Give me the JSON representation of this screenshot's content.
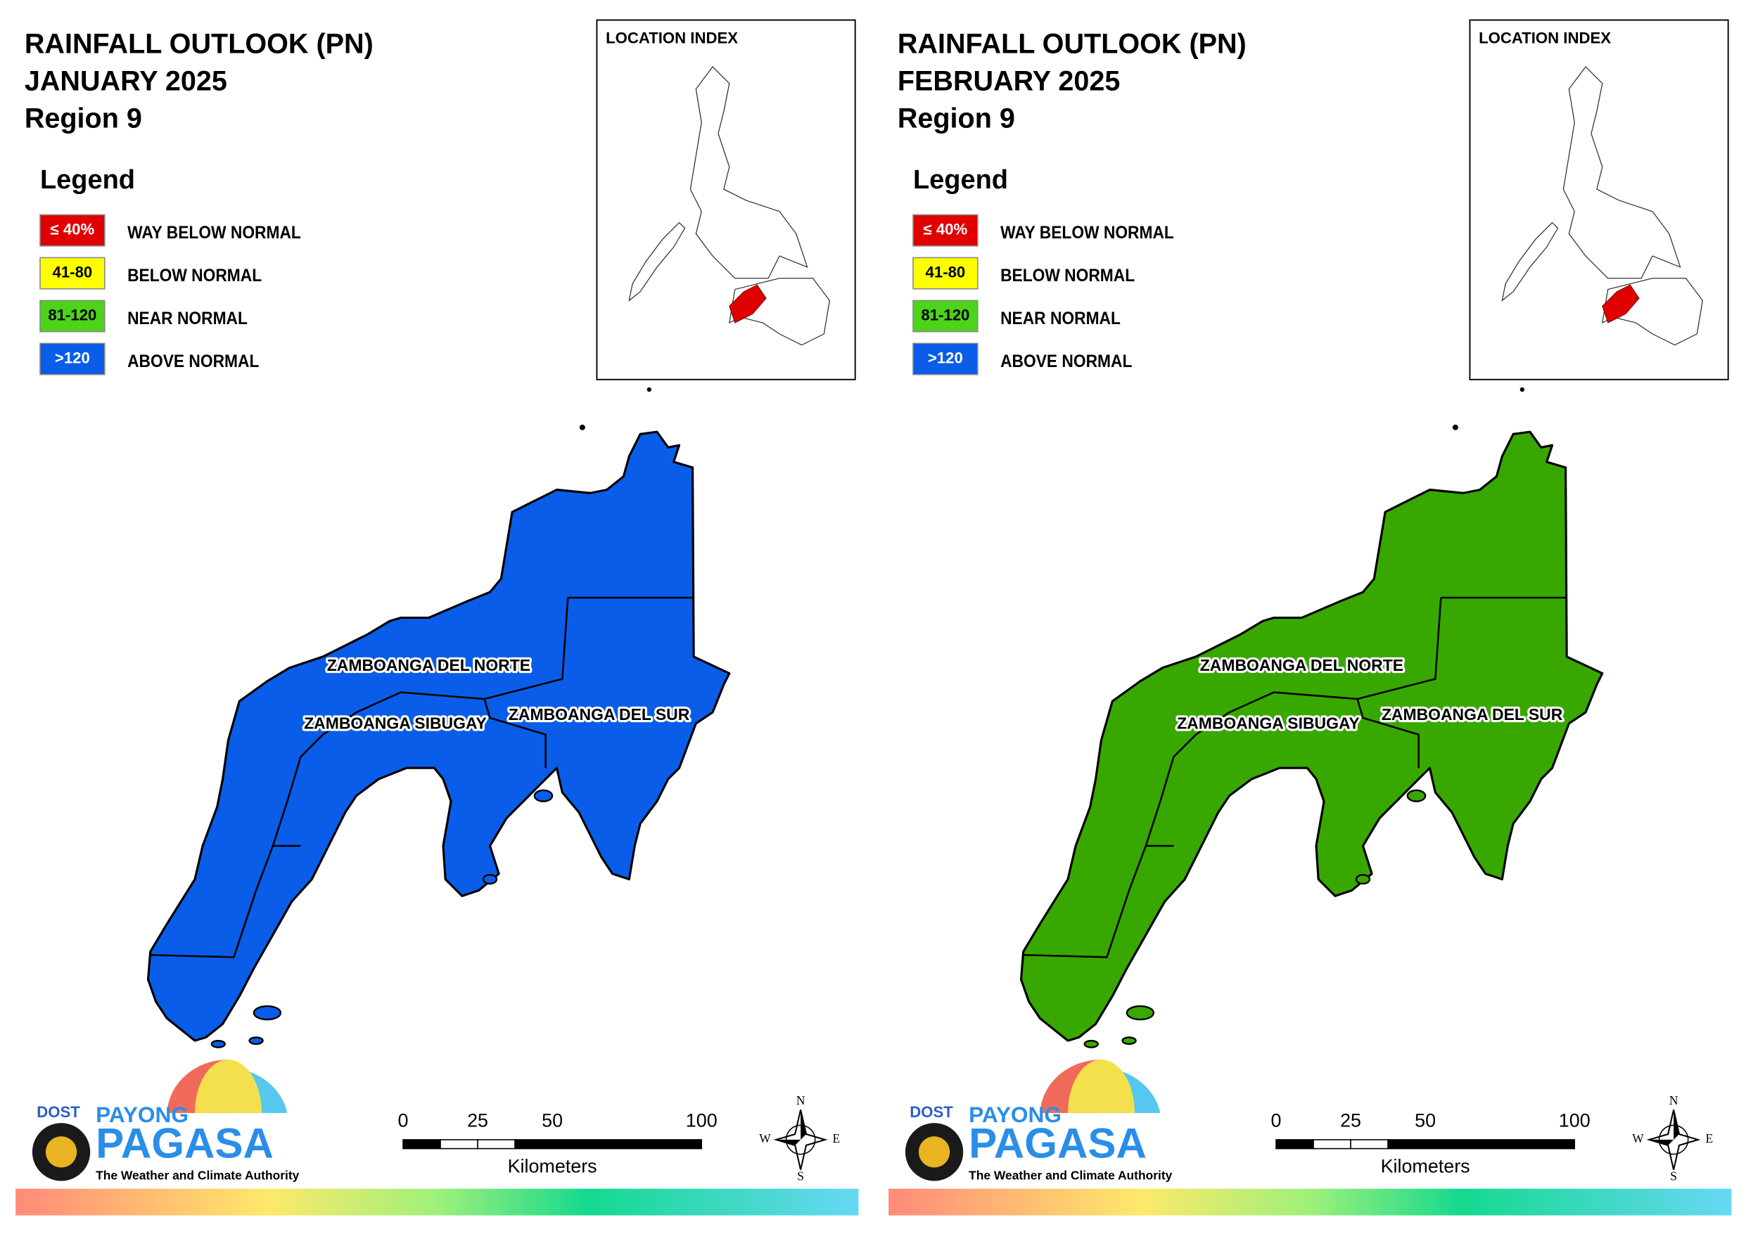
{
  "panels": [
    {
      "title": [
        "RAINFALL OUTLOOK (PN)",
        "JANUARY 2025",
        "Region 9"
      ],
      "fill": "#0a5de8",
      "legend": {
        "title": "Legend",
        "items": [
          {
            "swatch": "≤ 40%",
            "label": "WAY BELOW NORMAL",
            "color": "#e00000"
          },
          {
            "swatch": "41-80",
            "label": "BELOW NORMAL",
            "color": "#ffff00"
          },
          {
            "swatch": "81-120",
            "label": "NEAR NORMAL",
            "color": "#4cd31a"
          },
          {
            "swatch": ">120",
            "label": "ABOVE NORMAL",
            "color": "#0a5de8"
          }
        ]
      },
      "location_index": "LOCATION INDEX",
      "regions": [
        "ZAMBOANGA DEL NORTE",
        "ZAMBOANGA SIBUGAY",
        "ZAMBOANGA DEL SUR"
      ],
      "scale": {
        "ticks": [
          0,
          25,
          50,
          100
        ],
        "unit": "Kilometers"
      },
      "compass": [
        "N",
        "E",
        "S",
        "W"
      ],
      "logo": [
        "DOST",
        "PAYONG",
        "PAGASA",
        "The Weather and Climate Authority"
      ]
    },
    {
      "title": [
        "RAINFALL OUTLOOK (PN)",
        "FEBRUARY 2025",
        "Region 9"
      ],
      "fill": "#38a800",
      "legend": {
        "title": "Legend",
        "items": [
          {
            "swatch": "≤ 40%",
            "label": "WAY BELOW NORMAL",
            "color": "#e00000"
          },
          {
            "swatch": "41-80",
            "label": "BELOW NORMAL",
            "color": "#ffff00"
          },
          {
            "swatch": "81-120",
            "label": "NEAR NORMAL",
            "color": "#4cd31a"
          },
          {
            "swatch": ">120",
            "label": "ABOVE NORMAL",
            "color": "#0a5de8"
          }
        ]
      },
      "location_index": "LOCATION INDEX",
      "regions": [
        "ZAMBOANGA DEL NORTE",
        "ZAMBOANGA SIBUGAY",
        "ZAMBOANGA DEL SUR"
      ],
      "scale": {
        "ticks": [
          0,
          25,
          50,
          100
        ],
        "unit": "Kilometers"
      },
      "compass": [
        "N",
        "E",
        "S",
        "W"
      ],
      "logo": [
        "DOST",
        "PAYONG",
        "PAGASA",
        "The Weather and Climate Authority"
      ]
    }
  ]
}
